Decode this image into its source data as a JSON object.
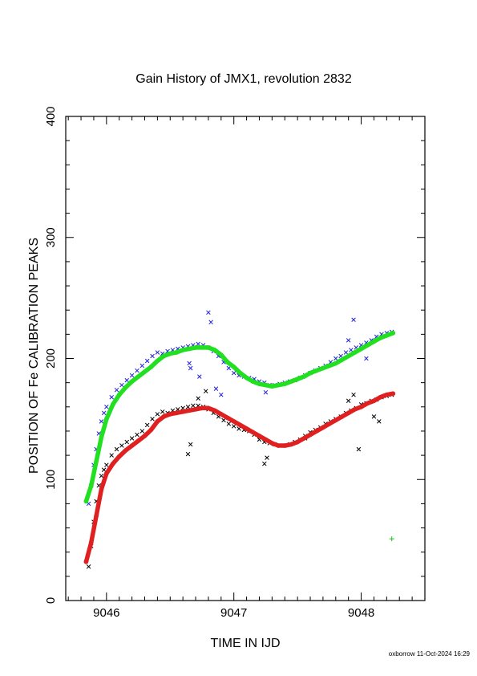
{
  "chart_data": {
    "type": "scatter",
    "title": "Gain History of JMX1, revolution 2832",
    "xlabel": "TIME IN IJD",
    "ylabel": "POSITION OF Fe CALIBRATION PEAKS",
    "xlim": [
      9045.68,
      9048.5
    ],
    "ylim": [
      0,
      400
    ],
    "x_ticks": [
      9046,
      9047,
      9048
    ],
    "x_tick_labels": [
      "9046",
      "9047",
      "9048"
    ],
    "y_ticks": [
      0,
      100,
      200,
      300,
      400
    ],
    "y_tick_labels": [
      "0",
      "100",
      "200",
      "300",
      "400"
    ],
    "grid": false,
    "legend": "none",
    "footer": "oxborrow 11-Oct-2024 16:29",
    "series": [
      {
        "marker": "x",
        "color": "#2020e0",
        "x": [
          9045.86,
          9045.88,
          9045.9,
          9045.92,
          9045.94,
          9045.96,
          9045.98,
          9046.0,
          9046.04,
          9046.08,
          9046.12,
          9046.16,
          9046.2,
          9046.24,
          9046.28,
          9046.32,
          9046.36,
          9046.4,
          9046.44,
          9046.48,
          9046.52,
          9046.56,
          9046.6,
          9046.64,
          9046.68,
          9046.72,
          9046.76,
          9046.8,
          9046.84,
          9046.88,
          9046.92,
          9046.96,
          9047.0,
          9047.04,
          9047.08,
          9047.12,
          9047.16,
          9047.2,
          9047.24,
          9047.28,
          9047.32,
          9047.36,
          9047.4,
          9047.44,
          9047.48,
          9047.52,
          9047.56,
          9047.6,
          9047.64,
          9047.68,
          9047.72,
          9047.76,
          9047.8,
          9047.84,
          9047.88,
          9047.92,
          9047.96,
          9048.0,
          9048.04,
          9048.08,
          9048.12,
          9048.16,
          9048.2,
          9048.24,
          9046.66,
          9046.73,
          9046.8,
          9046.82,
          9046.86,
          9046.9,
          9047.02,
          9047.25,
          9047.94,
          9047.9,
          9048.04,
          9046.65
        ],
        "y": [
          80,
          95,
          112,
          125,
          138,
          148,
          155,
          160,
          168,
          174,
          178,
          182,
          186,
          190,
          194,
          198,
          202,
          205,
          204,
          206,
          207,
          208,
          209,
          210,
          211,
          212,
          211,
          209,
          206,
          202,
          197,
          192,
          188,
          186,
          185,
          184,
          183,
          181,
          180,
          178,
          178,
          179,
          180,
          181,
          182,
          184,
          186,
          188,
          190,
          192,
          194,
          197,
          200,
          202,
          205,
          207,
          209,
          211,
          213,
          215,
          218,
          220,
          221,
          222,
          192,
          185,
          238,
          230,
          175,
          170,
          190,
          172,
          232,
          215,
          200,
          196
        ]
      },
      {
        "marker": "x",
        "color": "#000000",
        "x": [
          9045.86,
          9045.88,
          9045.9,
          9045.92,
          9045.94,
          9045.96,
          9045.98,
          9046.0,
          9046.04,
          9046.08,
          9046.12,
          9046.16,
          9046.2,
          9046.24,
          9046.28,
          9046.32,
          9046.36,
          9046.4,
          9046.44,
          9046.48,
          9046.52,
          9046.56,
          9046.6,
          9046.64,
          9046.68,
          9046.72,
          9046.76,
          9046.8,
          9046.84,
          9046.88,
          9046.92,
          9046.96,
          9047.0,
          9047.04,
          9047.08,
          9047.12,
          9047.16,
          9047.2,
          9047.24,
          9047.28,
          9047.32,
          9047.36,
          9047.4,
          9047.44,
          9047.48,
          9047.52,
          9047.56,
          9047.6,
          9047.64,
          9047.68,
          9047.72,
          9047.76,
          9047.8,
          9047.84,
          9047.88,
          9047.92,
          9047.96,
          9048.0,
          9048.04,
          9048.08,
          9048.12,
          9048.16,
          9048.2,
          9048.24,
          9046.64,
          9046.66,
          9046.72,
          9046.78,
          9047.24,
          9047.26,
          9047.56,
          9047.9,
          9047.94,
          9047.98,
          9048.1,
          9048.14
        ],
        "y": [
          28,
          45,
          65,
          82,
          95,
          103,
          108,
          112,
          120,
          125,
          128,
          131,
          134,
          137,
          140,
          145,
          150,
          154,
          156,
          155,
          157,
          158,
          159,
          160,
          161,
          161,
          160,
          158,
          155,
          152,
          149,
          146,
          144,
          142,
          141,
          140,
          137,
          133,
          131,
          130,
          129,
          128,
          128,
          129,
          131,
          133,
          136,
          139,
          141,
          143,
          146,
          148,
          150,
          152,
          155,
          157,
          159,
          162,
          163,
          165,
          166,
          168,
          169,
          170,
          121,
          129,
          167,
          173,
          113,
          118,
          134,
          165,
          170,
          125,
          152,
          148
        ]
      },
      {
        "marker": "line",
        "color": "#20e020",
        "x": [
          9045.84,
          9045.88,
          9045.92,
          9045.96,
          9046.0,
          9046.05,
          9046.1,
          9046.15,
          9046.2,
          9046.25,
          9046.3,
          9046.35,
          9046.4,
          9046.45,
          9046.5,
          9046.55,
          9046.6,
          9046.65,
          9046.7,
          9046.75,
          9046.8,
          9046.85,
          9046.9,
          9046.95,
          9047.0,
          9047.05,
          9047.1,
          9047.15,
          9047.2,
          9047.25,
          9047.3,
          9047.35,
          9047.4,
          9047.45,
          9047.5,
          9047.55,
          9047.6,
          9047.65,
          9047.7,
          9047.75,
          9047.8,
          9047.85,
          9047.9,
          9047.95,
          9048.0,
          9048.05,
          9048.1,
          9048.15,
          9048.2,
          9048.25
        ],
        "y": [
          82,
          95,
          115,
          135,
          150,
          162,
          170,
          176,
          181,
          185,
          189,
          193,
          198,
          202,
          204,
          205,
          207,
          208,
          209,
          209,
          209,
          207,
          203,
          197,
          193,
          188,
          184,
          181,
          179,
          178,
          177,
          178,
          179,
          181,
          183,
          185,
          188,
          190,
          192,
          194,
          196,
          199,
          202,
          205,
          208,
          211,
          214,
          217,
          219,
          221
        ]
      },
      {
        "marker": "line",
        "color": "#e02020",
        "x": [
          9045.84,
          9045.88,
          9045.92,
          9045.96,
          9046.0,
          9046.05,
          9046.1,
          9046.15,
          9046.2,
          9046.25,
          9046.3,
          9046.35,
          9046.4,
          9046.45,
          9046.5,
          9046.55,
          9046.6,
          9046.65,
          9046.7,
          9046.75,
          9046.8,
          9046.85,
          9046.9,
          9046.95,
          9047.0,
          9047.05,
          9047.1,
          9047.15,
          9047.2,
          9047.25,
          9047.3,
          9047.35,
          9047.4,
          9047.45,
          9047.5,
          9047.55,
          9047.6,
          9047.65,
          9047.7,
          9047.75,
          9047.8,
          9047.85,
          9047.9,
          9047.95,
          9048.0,
          9048.05,
          9048.1,
          9048.15,
          9048.2,
          9048.25
        ],
        "y": [
          32,
          48,
          70,
          92,
          105,
          113,
          119,
          124,
          128,
          132,
          136,
          141,
          148,
          152,
          154,
          155,
          156,
          157,
          158,
          159,
          159,
          157,
          154,
          151,
          148,
          145,
          142,
          139,
          136,
          133,
          130,
          128,
          128,
          129,
          131,
          134,
          137,
          140,
          143,
          146,
          149,
          152,
          155,
          158,
          160,
          163,
          165,
          168,
          170,
          171
        ]
      },
      {
        "marker": "+",
        "color": "#20c020",
        "x": [
          9048.24
        ],
        "y": [
          51
        ]
      }
    ]
  }
}
